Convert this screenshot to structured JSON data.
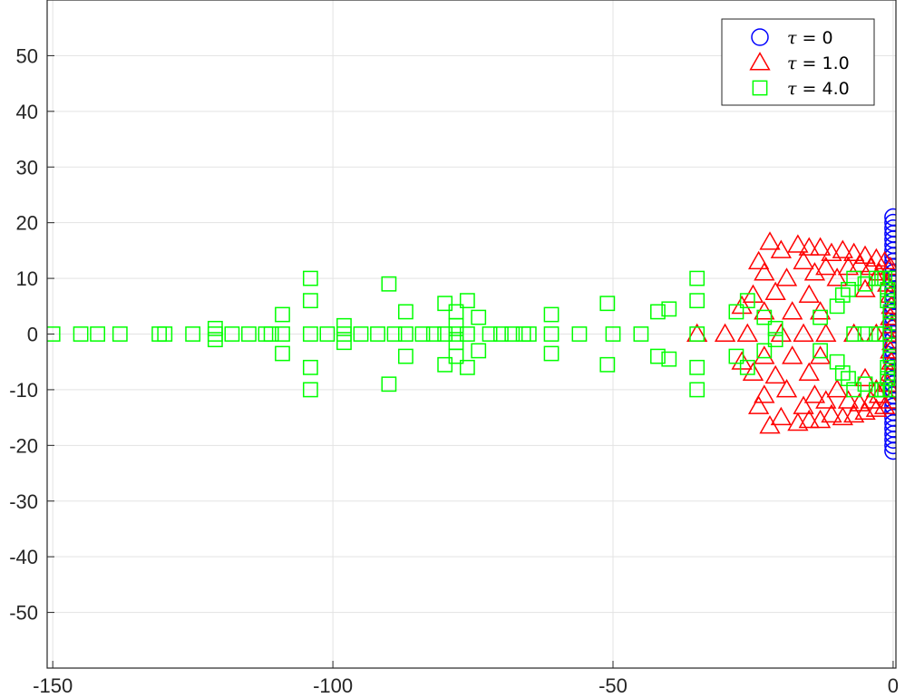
{
  "chart_data": {
    "type": "scatter",
    "title": "",
    "xlabel": "",
    "ylabel": "",
    "xlim": [
      -151,
      0.5
    ],
    "ylim": [
      -60,
      60
    ],
    "xticks": [
      -150,
      -100,
      -50,
      0
    ],
    "yticks": [
      -50,
      -40,
      -30,
      -20,
      -10,
      0,
      10,
      20,
      30,
      40,
      50
    ],
    "xtick_labels": [
      "-150",
      "-100",
      "-50",
      "0"
    ],
    "ytick_labels": [
      "-50",
      "-40",
      "-30",
      "-20",
      "-10",
      "0",
      "10",
      "20",
      "30",
      "40",
      "50"
    ],
    "grid": true,
    "legend_position": "top-right",
    "series": [
      {
        "legend_prefix": "τ",
        "legend_suffix": " = 0",
        "marker": "circle",
        "color": "#0000ff",
        "points": [
          [
            0,
            -21
          ],
          [
            0,
            -20
          ],
          [
            0,
            -19
          ],
          [
            0,
            -18
          ],
          [
            0,
            -17
          ],
          [
            0,
            -16
          ],
          [
            0,
            -15
          ],
          [
            0,
            -14
          ],
          [
            0,
            -13
          ],
          [
            0,
            -12
          ],
          [
            0,
            -11
          ],
          [
            0,
            -10
          ],
          [
            0,
            -9
          ],
          [
            0,
            -8
          ],
          [
            0,
            -7
          ],
          [
            0,
            -6
          ],
          [
            0,
            -5
          ],
          [
            0,
            -4
          ],
          [
            0,
            -3
          ],
          [
            0,
            -2
          ],
          [
            0,
            -1
          ],
          [
            0,
            0
          ],
          [
            0,
            1
          ],
          [
            0,
            2
          ],
          [
            0,
            3
          ],
          [
            0,
            4
          ],
          [
            0,
            5
          ],
          [
            0,
            6
          ],
          [
            0,
            7
          ],
          [
            0,
            8
          ],
          [
            0,
            9
          ],
          [
            0,
            10
          ],
          [
            0,
            11
          ],
          [
            0,
            12
          ],
          [
            0,
            13
          ],
          [
            0,
            14
          ],
          [
            0,
            15
          ],
          [
            0,
            16
          ],
          [
            0,
            17
          ],
          [
            0,
            18
          ],
          [
            0,
            19
          ],
          [
            0,
            20
          ],
          [
            0,
            21
          ]
        ]
      },
      {
        "legend_prefix": "τ",
        "legend_suffix": " = 1.0",
        "marker": "triangle",
        "color": "#ff0000",
        "points": [
          [
            -22,
            16.5
          ],
          [
            -20,
            15
          ],
          [
            -17,
            16
          ],
          [
            -15,
            15.5
          ],
          [
            -13,
            15.5
          ],
          [
            -11,
            14.5
          ],
          [
            -9,
            15
          ],
          [
            -7,
            14.5
          ],
          [
            -5,
            14
          ],
          [
            -3,
            13.5
          ],
          [
            -1.5,
            13
          ],
          [
            -0.5,
            12
          ],
          [
            -22,
            -16.5
          ],
          [
            -20,
            -15
          ],
          [
            -17,
            -16
          ],
          [
            -15,
            -15.5
          ],
          [
            -13,
            -15.5
          ],
          [
            -11,
            -14.5
          ],
          [
            -9,
            -15
          ],
          [
            -7,
            -14.5
          ],
          [
            -5,
            -14
          ],
          [
            -3,
            -13.5
          ],
          [
            -1.5,
            -13
          ],
          [
            -0.5,
            -12
          ],
          [
            -24,
            13
          ],
          [
            -16,
            13
          ],
          [
            -12,
            12
          ],
          [
            -8,
            12
          ],
          [
            -6,
            12.5
          ],
          [
            -4,
            12
          ],
          [
            -2.5,
            11
          ],
          [
            -24,
            -13
          ],
          [
            -16,
            -13
          ],
          [
            -12,
            -12
          ],
          [
            -8,
            -12
          ],
          [
            -6,
            -12.5
          ],
          [
            -4,
            -12
          ],
          [
            -2.5,
            -11
          ],
          [
            -23,
            11
          ],
          [
            -19,
            10
          ],
          [
            -14,
            11
          ],
          [
            -10,
            10
          ],
          [
            -3,
            10
          ],
          [
            -1,
            9
          ],
          [
            -23,
            -11
          ],
          [
            -19,
            -10
          ],
          [
            -14,
            -11
          ],
          [
            -10,
            -10
          ],
          [
            -3,
            -10
          ],
          [
            -1,
            -9
          ],
          [
            -25,
            7
          ],
          [
            -21,
            7.5
          ],
          [
            -15,
            7
          ],
          [
            -5,
            8
          ],
          [
            -0.5,
            7
          ],
          [
            -25,
            -7
          ],
          [
            -21,
            -7.5
          ],
          [
            -15,
            -7
          ],
          [
            -5,
            -8
          ],
          [
            -0.5,
            -7
          ],
          [
            -27,
            5
          ],
          [
            -23,
            4
          ],
          [
            -18,
            4
          ],
          [
            -13,
            4
          ],
          [
            -0.3,
            5
          ],
          [
            -27,
            -5
          ],
          [
            -23,
            -4
          ],
          [
            -18,
            -4
          ],
          [
            -13,
            -4
          ],
          [
            -0.3,
            -5
          ],
          [
            -35,
            0
          ],
          [
            -30,
            0
          ],
          [
            -26,
            0
          ],
          [
            -20,
            0
          ],
          [
            -16,
            0
          ],
          [
            -12,
            0
          ],
          [
            -7,
            0
          ],
          [
            -3,
            0
          ],
          [
            -1,
            0
          ],
          [
            -0.5,
            3
          ],
          [
            -0.5,
            -3
          ],
          [
            -0.2,
            1.5
          ],
          [
            -0.2,
            -1.5
          ]
        ]
      },
      {
        "legend_prefix": "τ",
        "legend_suffix": " = 4.0",
        "marker": "square",
        "color": "#00ff00",
        "points": [
          [
            -150,
            0
          ],
          [
            -145,
            0
          ],
          [
            -142,
            0
          ],
          [
            -138,
            0
          ],
          [
            -131,
            0
          ],
          [
            -130,
            0
          ],
          [
            -125,
            0
          ],
          [
            -121,
            0
          ],
          [
            -118,
            0
          ],
          [
            -115,
            0
          ],
          [
            -112,
            0
          ],
          [
            -111,
            0
          ],
          [
            -109,
            0
          ],
          [
            -104,
            0
          ],
          [
            -101,
            0
          ],
          [
            -98,
            0
          ],
          [
            -95,
            0
          ],
          [
            -92,
            0
          ],
          [
            -89,
            0
          ],
          [
            -87,
            0
          ],
          [
            -84,
            0
          ],
          [
            -82,
            0
          ],
          [
            -80,
            0
          ],
          [
            -78,
            0
          ],
          [
            -76,
            0
          ],
          [
            -72,
            0
          ],
          [
            -70,
            0
          ],
          [
            -68,
            0
          ],
          [
            -66,
            0
          ],
          [
            -65,
            0
          ],
          [
            -61,
            0
          ],
          [
            -56,
            0
          ],
          [
            -50,
            0
          ],
          [
            -45,
            0
          ],
          [
            -35,
            0
          ],
          [
            -7,
            0
          ],
          [
            -5,
            0
          ],
          [
            -3,
            0
          ],
          [
            -1.5,
            0
          ],
          [
            -121,
            1
          ],
          [
            -121,
            -1
          ],
          [
            -98,
            1.5
          ],
          [
            -98,
            -1.5
          ],
          [
            -78,
            1.5
          ],
          [
            -78,
            -1.5
          ],
          [
            -104,
            10
          ],
          [
            -104,
            -10
          ],
          [
            -104,
            6
          ],
          [
            -104,
            -6
          ],
          [
            -109,
            3.5
          ],
          [
            -109,
            -3.5
          ],
          [
            -90,
            9
          ],
          [
            -90,
            -9
          ],
          [
            -87,
            4
          ],
          [
            -87,
            -4
          ],
          [
            -80,
            5.5
          ],
          [
            -80,
            -5.5
          ],
          [
            -78,
            4
          ],
          [
            -78,
            -4
          ],
          [
            -76,
            6
          ],
          [
            -76,
            -6
          ],
          [
            -74,
            3
          ],
          [
            -74,
            -3
          ],
          [
            -61,
            3.5
          ],
          [
            -61,
            -3.5
          ],
          [
            -51,
            5.5
          ],
          [
            -51,
            -5.5
          ],
          [
            -42,
            4
          ],
          [
            -42,
            -4
          ],
          [
            -40,
            4.5
          ],
          [
            -40,
            -4.5
          ],
          [
            -35,
            10
          ],
          [
            -35,
            -10
          ],
          [
            -35,
            6
          ],
          [
            -35,
            -6
          ],
          [
            -28,
            4
          ],
          [
            -28,
            -4
          ],
          [
            -26,
            6
          ],
          [
            -26,
            -6
          ],
          [
            -23,
            3
          ],
          [
            -23,
            -3
          ],
          [
            -21,
            1
          ],
          [
            -21,
            -1
          ],
          [
            -13,
            3
          ],
          [
            -13,
            -3
          ],
          [
            -10,
            5
          ],
          [
            -10,
            -5
          ],
          [
            -9,
            7
          ],
          [
            -9,
            -7
          ],
          [
            -8,
            8
          ],
          [
            -8,
            -8
          ],
          [
            -7,
            10
          ],
          [
            -7,
            -10
          ],
          [
            -5,
            9
          ],
          [
            -5,
            -9
          ],
          [
            -3,
            10
          ],
          [
            -3,
            -10
          ],
          [
            -2,
            10
          ],
          [
            -2,
            -10
          ],
          [
            -1,
            8
          ],
          [
            -1,
            -8
          ],
          [
            -1,
            6
          ],
          [
            -1,
            -6
          ],
          [
            -0.5,
            4
          ],
          [
            -0.5,
            -4
          ],
          [
            -0.5,
            2
          ],
          [
            -0.5,
            -2
          ],
          [
            -1.5,
            10
          ],
          [
            -1.5,
            -10
          ],
          [
            -0.3,
            10
          ],
          [
            -0.3,
            -10
          ],
          [
            -0.2,
            7
          ],
          [
            -0.2,
            -7
          ]
        ]
      }
    ]
  }
}
